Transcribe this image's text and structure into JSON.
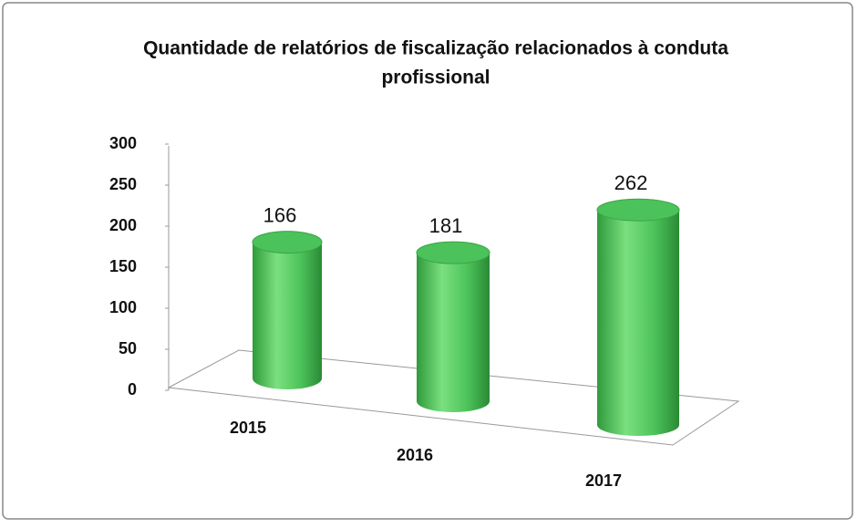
{
  "chart_data": {
    "type": "cylinder",
    "title": "Quantidade de relatórios de fiscalização relacionados à conduta profissional",
    "categories": [
      "2015",
      "2016",
      "2017"
    ],
    "values": [
      166,
      181,
      262
    ],
    "color": "#4cc25a",
    "ylim": [
      0,
      300
    ],
    "yticks": [
      0,
      50,
      100,
      150,
      200,
      250,
      300
    ],
    "grid": false
  }
}
